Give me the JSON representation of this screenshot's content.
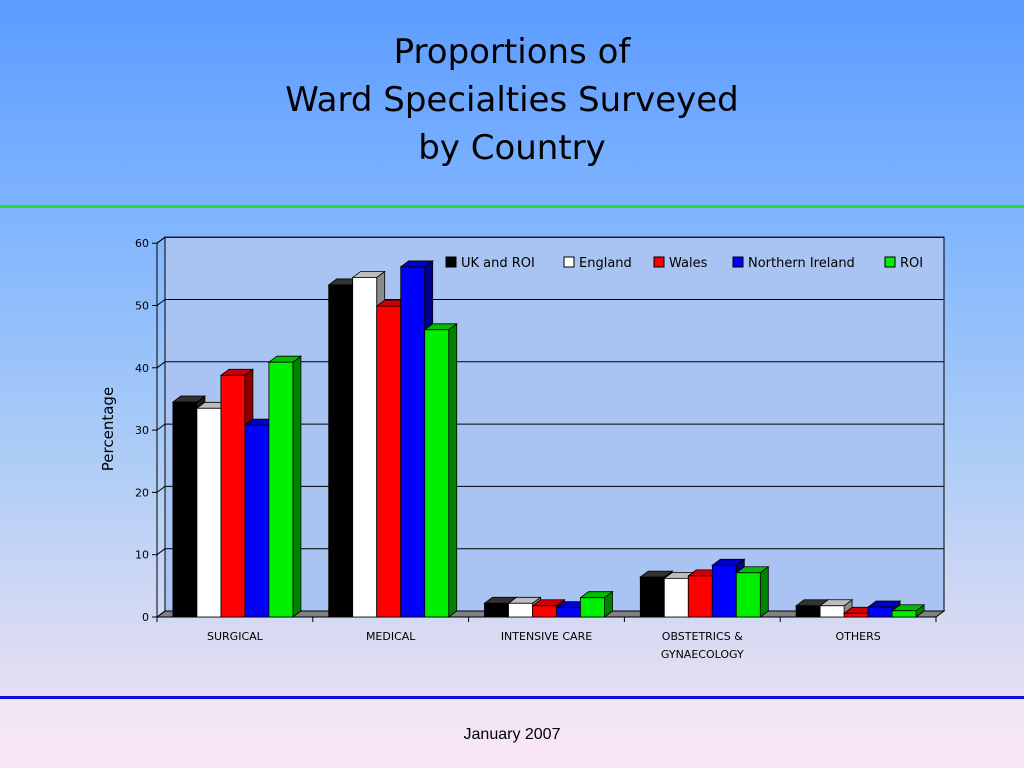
{
  "slide": {
    "title_lines": [
      "Proportions of",
      "Ward Specialties Surveyed",
      "by Country"
    ],
    "footer_date": "January 2007"
  },
  "chart_data": {
    "type": "bar",
    "title": "",
    "xlabel": "",
    "ylabel": "Percentage",
    "ylim": [
      0,
      60
    ],
    "yticks": [
      0,
      10,
      20,
      30,
      40,
      50,
      60
    ],
    "grid": true,
    "legend_position": "top-right",
    "categories": [
      [
        "SURGICAL"
      ],
      [
        "MEDICAL"
      ],
      [
        "INTENSIVE CARE"
      ],
      [
        "OBSTETRICS &",
        "GYNAECOLOGY"
      ],
      [
        "OTHERS"
      ]
    ],
    "series": [
      {
        "name": "UK and ROI",
        "color": "#000000",
        "values": [
          34.5,
          53.3,
          2.2,
          6.4,
          1.8
        ]
      },
      {
        "name": "England",
        "color": "#ffffff",
        "values": [
          33.5,
          54.5,
          2.2,
          6.2,
          1.8
        ]
      },
      {
        "name": "Wales",
        "color": "#ff0000",
        "values": [
          38.8,
          49.9,
          1.8,
          6.6,
          0.6
        ]
      },
      {
        "name": "Northern Ireland",
        "color": "#0000ff",
        "values": [
          30.8,
          56.2,
          1.5,
          8.3,
          1.6
        ]
      },
      {
        "name": "ROI",
        "color": "#00ee00",
        "values": [
          40.9,
          46.1,
          3.1,
          7.1,
          1.0
        ]
      }
    ]
  }
}
